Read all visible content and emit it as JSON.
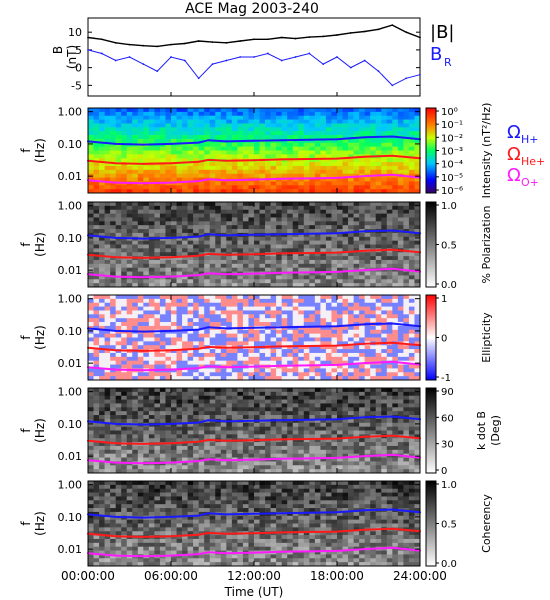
{
  "figure": {
    "title": "ACE Mag 2003-240",
    "xlabel": "Time (UT)",
    "xticks": [
      "00:00:00",
      "06:00:00",
      "12:00:00",
      "18:00:00",
      "24:00:00"
    ]
  },
  "colors": {
    "B_total": "#000000",
    "B_R": "#1a1aff",
    "H_plus": "#1a1aff",
    "He_plus": "#ff1a1a",
    "O_plus": "#ff1aff"
  },
  "legend": {
    "B_total": "|B|",
    "B_R": "B",
    "B_R_sub": "R",
    "omega": "Ω",
    "H_sub": "H+",
    "He_sub": "He+",
    "O_sub": "O+"
  },
  "freq_axis": {
    "label_f": "f",
    "label_hz": "(Hz)",
    "ticks": [
      "1.00",
      "0.10",
      "0.01"
    ]
  },
  "chart_data": [
    {
      "type": "line",
      "panel": "B",
      "ylabel_top": "B",
      "ylabel_bottom": "(nT)",
      "ylim": [
        -8,
        14
      ],
      "yticks": [
        "10",
        "5",
        "0",
        "-5"
      ],
      "x": [
        0,
        1,
        2,
        3,
        4,
        5,
        6,
        7,
        8,
        9,
        10,
        11,
        12,
        13,
        14,
        15,
        16,
        17,
        18,
        19,
        20,
        21,
        22,
        23,
        24
      ],
      "series": [
        {
          "name": "|B|",
          "values": [
            8.5,
            8.0,
            7.0,
            6.5,
            6.2,
            6.0,
            6.5,
            6.8,
            7.5,
            7.2,
            7.0,
            7.5,
            8.0,
            8.0,
            8.5,
            8.2,
            8.6,
            8.8,
            9.2,
            9.8,
            10.2,
            10.8,
            12.0,
            10.0,
            8.5
          ]
        },
        {
          "name": "B_R",
          "values": [
            5,
            4,
            2,
            3,
            1,
            -1,
            3,
            2,
            -3,
            1,
            2,
            3,
            3,
            4,
            2,
            3,
            4,
            1,
            3,
            0,
            2,
            -1,
            -5,
            -3,
            -2
          ]
        }
      ]
    },
    {
      "type": "heatmap",
      "panel": "intensity",
      "colorbar_label": "Intensity (nT²/Hz)",
      "colorbar_ticks": [
        "10⁰",
        "10⁻¹",
        "10⁻²",
        "10⁻³",
        "10⁻⁴",
        "10⁻⁵",
        "10⁻⁶"
      ]
    },
    {
      "type": "heatmap",
      "panel": "polarization",
      "colorbar_label": "% Polarization",
      "colorbar_ticks": [
        "1.0",
        "0.5",
        "0.0"
      ]
    },
    {
      "type": "heatmap",
      "panel": "ellipticity",
      "colorbar_label": "Ellipticity",
      "colorbar_ticks": [
        "1",
        "0",
        "-1"
      ]
    },
    {
      "type": "heatmap",
      "panel": "kdotb",
      "colorbar_label_1": "k dot B",
      "colorbar_label_2": "(Deg)",
      "colorbar_ticks": [
        "90",
        "60",
        "30",
        "0"
      ]
    },
    {
      "type": "heatmap",
      "panel": "coherency",
      "colorbar_label": "Coherency",
      "colorbar_ticks": [
        "1.0",
        "0.5",
        "0.0"
      ]
    },
    {
      "type": "line",
      "panel": "gyrofrequency-overlay",
      "x": [
        0,
        2,
        4,
        6,
        8,
        8.7,
        10,
        12,
        14,
        16,
        18,
        20,
        22,
        24
      ],
      "series": [
        {
          "name": "Ω_H+",
          "values": [
            0.12,
            0.1,
            0.095,
            0.1,
            0.11,
            0.13,
            0.12,
            0.125,
            0.13,
            0.135,
            0.14,
            0.16,
            0.17,
            0.14
          ]
        },
        {
          "name": "Ω_He+",
          "values": [
            0.03,
            0.025,
            0.024,
            0.025,
            0.028,
            0.032,
            0.03,
            0.031,
            0.033,
            0.034,
            0.035,
            0.04,
            0.043,
            0.036
          ]
        },
        {
          "name": "Ω_O+",
          "values": [
            0.0075,
            0.0063,
            0.006,
            0.0063,
            0.007,
            0.008,
            0.0075,
            0.0078,
            0.0083,
            0.0085,
            0.0088,
            0.01,
            0.011,
            0.009
          ]
        }
      ]
    }
  ]
}
